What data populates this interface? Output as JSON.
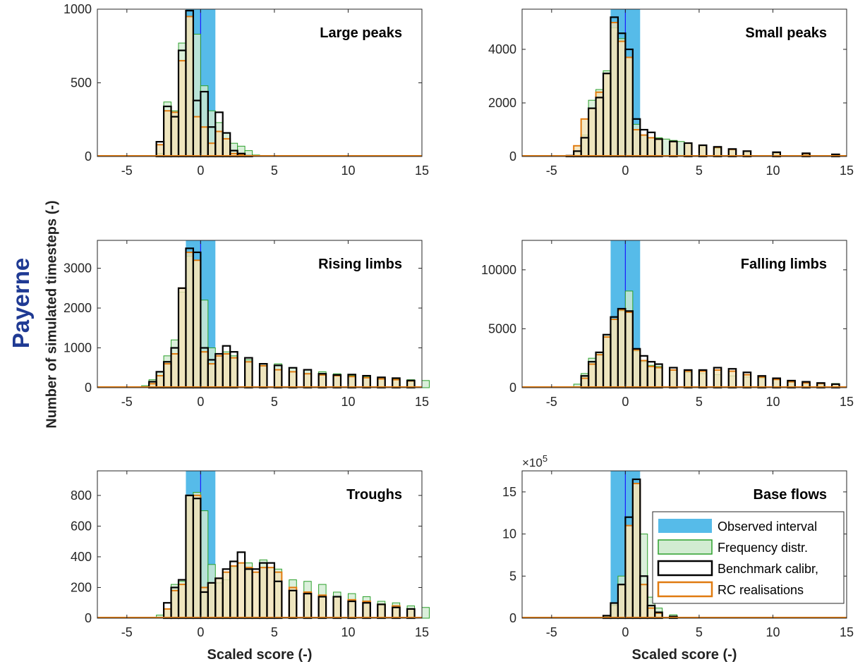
{
  "figure": {
    "site_label": "Payerne",
    "y_axis_label": "Number of simulated timesteps (-)",
    "x_axis_label": "Scaled score (-)"
  },
  "colors": {
    "observed_interval": "#56bbe9",
    "observed_line": "#1a1aff",
    "frequency_fill": "#d2ecd2",
    "frequency_edge": "#2ca02c",
    "benchmark": "#000000",
    "rc_fill": "#f2e2b6",
    "rc_edge": "#e07b10"
  },
  "legend": {
    "observed": "Observed interval",
    "frequency": "Frequency distr.",
    "benchmark": "Benchmark calibr,",
    "rc": "RC realisations"
  },
  "chart_data": [
    {
      "type": "bar",
      "title": "Large peaks",
      "xlim": [
        -7,
        15
      ],
      "ylim": [
        0,
        1000
      ],
      "xticks": [
        -5,
        0,
        5,
        10,
        15
      ],
      "yticks": [
        0,
        500,
        1000
      ],
      "observed_interval": [
        -1,
        1
      ],
      "observed_value": 0,
      "bin_width": 0.5,
      "series": [
        {
          "name": "Frequency distr.",
          "x": [
            -3,
            -2.5,
            -2,
            -1.5,
            -1,
            -0.5,
            0,
            0.5,
            1,
            1.5,
            2,
            2.5,
            3,
            3.5
          ],
          "values": [
            20,
            370,
            310,
            770,
            950,
            830,
            480,
            310,
            230,
            160,
            90,
            70,
            40,
            10
          ]
        },
        {
          "name": "Benchmark calibr,",
          "x": [
            -3,
            -2.5,
            -2,
            -1.5,
            -1,
            -0.5,
            0,
            0.5,
            1,
            1.5,
            2,
            2.5,
            3
          ],
          "values": [
            100,
            340,
            270,
            720,
            990,
            380,
            440,
            200,
            300,
            160,
            40,
            20,
            5
          ]
        },
        {
          "name": "RC realisations",
          "x": [
            -3,
            -2.5,
            -2,
            -1.5,
            -1,
            -0.5,
            0,
            0.5,
            1,
            1.5,
            2,
            2.5
          ],
          "values": [
            80,
            310,
            300,
            650,
            950,
            270,
            200,
            90,
            170,
            120,
            20,
            10
          ]
        }
      ]
    },
    {
      "type": "bar",
      "title": "Small peaks",
      "xlim": [
        -7,
        15
      ],
      "ylim": [
        0,
        5500
      ],
      "xticks": [
        -5,
        0,
        5,
        10,
        15
      ],
      "yticks": [
        0,
        2000,
        4000
      ],
      "observed_interval": [
        -1,
        1
      ],
      "observed_value": 0,
      "bin_width": 0.5,
      "series": [
        {
          "name": "Frequency distr.",
          "x": [
            -4,
            -3.5,
            -3,
            -2.5,
            -2,
            -1.5,
            -1,
            -0.5,
            0,
            0.5,
            1,
            1.5,
            2,
            2.5,
            3,
            3.5,
            4,
            5,
            6,
            7,
            8,
            10,
            12,
            14
          ],
          "values": [
            20,
            200,
            800,
            2100,
            2500,
            3200,
            4800,
            4400,
            3700,
            1200,
            800,
            700,
            700,
            650,
            600,
            560,
            500,
            400,
            300,
            250,
            200,
            120,
            80,
            60
          ]
        },
        {
          "name": "Benchmark calibr,",
          "x": [
            -4,
            -3.5,
            -3,
            -2.5,
            -2,
            -1.5,
            -1,
            -0.5,
            0,
            0.5,
            1,
            1.5,
            2,
            3,
            4,
            5,
            6,
            7,
            8,
            10,
            12,
            14
          ],
          "values": [
            30,
            200,
            700,
            1800,
            2200,
            3100,
            5200,
            4600,
            4000,
            1400,
            1000,
            900,
            650,
            560,
            500,
            420,
            360,
            280,
            200,
            160,
            120,
            80
          ]
        },
        {
          "name": "RC realisations",
          "x": [
            -4,
            -3.5,
            -3,
            -2.5,
            -2,
            -1.5,
            -1,
            -0.5,
            0,
            0.5,
            1,
            1.5,
            2,
            3,
            4,
            5,
            6,
            7,
            8,
            10,
            12,
            14
          ],
          "values": [
            30,
            400,
            1400,
            1800,
            2400,
            3100,
            5000,
            4300,
            3700,
            1000,
            800,
            700,
            650,
            560,
            500,
            420,
            340,
            260,
            200,
            150,
            100,
            70
          ]
        }
      ]
    },
    {
      "type": "bar",
      "title": "Rising limbs",
      "xlim": [
        -7,
        15
      ],
      "ylim": [
        0,
        3700
      ],
      "xticks": [
        -5,
        0,
        5,
        10,
        15
      ],
      "yticks": [
        0,
        1000,
        2000,
        3000
      ],
      "observed_interval": [
        -1,
        1
      ],
      "observed_value": 0,
      "bin_width": 0.5,
      "series": [
        {
          "name": "Frequency distr.",
          "x": [
            -4,
            -3.5,
            -3,
            -2.5,
            -2,
            -1.5,
            -1,
            -0.5,
            0,
            0.5,
            1,
            1.5,
            2,
            3,
            4,
            5,
            6,
            7,
            8,
            9,
            10,
            11,
            12,
            13,
            14,
            15
          ],
          "values": [
            50,
            200,
            400,
            800,
            1200,
            2400,
            3300,
            3200,
            2200,
            1000,
            800,
            900,
            800,
            700,
            600,
            600,
            500,
            450,
            400,
            350,
            300,
            280,
            250,
            220,
            200,
            180
          ]
        },
        {
          "name": "Benchmark calibr,",
          "x": [
            -3.5,
            -3,
            -2.5,
            -2,
            -1.5,
            -1,
            -0.5,
            0,
            0.5,
            1,
            1.5,
            2,
            3,
            4,
            5,
            6,
            7,
            8,
            9,
            10,
            11,
            12,
            13,
            14
          ],
          "values": [
            150,
            400,
            650,
            1000,
            2500,
            3500,
            3400,
            1000,
            700,
            850,
            1050,
            900,
            750,
            600,
            560,
            500,
            450,
            350,
            320,
            330,
            300,
            260,
            240,
            180
          ]
        },
        {
          "name": "RC realisations",
          "x": [
            -3.5,
            -3,
            -2.5,
            -2,
            -1.5,
            -1,
            -0.5,
            0,
            0.5,
            1,
            1.5,
            2,
            3,
            4,
            5,
            6,
            7,
            8,
            9,
            10,
            11,
            12,
            13,
            14
          ],
          "values": [
            100,
            300,
            600,
            850,
            2500,
            3400,
            3200,
            900,
            600,
            800,
            850,
            750,
            650,
            550,
            450,
            400,
            350,
            320,
            300,
            280,
            250,
            220,
            200,
            170
          ]
        }
      ]
    },
    {
      "type": "bar",
      "title": "Falling limbs",
      "xlim": [
        -7,
        15
      ],
      "ylim": [
        0,
        12500
      ],
      "xticks": [
        -5,
        0,
        5,
        10,
        15
      ],
      "yticks": [
        0,
        5000,
        10000
      ],
      "observed_interval": [
        -1,
        1
      ],
      "observed_value": 0,
      "bin_width": 0.5,
      "series": [
        {
          "name": "Frequency distr.",
          "x": [
            -3.5,
            -3,
            -2.5,
            -2,
            -1.5,
            -1,
            -0.5,
            0,
            0.5,
            1,
            1.5,
            2,
            3,
            4,
            5,
            6,
            7,
            8,
            9,
            10,
            11,
            12,
            13,
            14
          ],
          "values": [
            300,
            1200,
            2500,
            3000,
            4500,
            5800,
            6500,
            8200,
            3100,
            2200,
            1900,
            1800,
            1500,
            1300,
            1200,
            1100,
            1000,
            900,
            800,
            700,
            600,
            500,
            400,
            350
          ]
        },
        {
          "name": "Benchmark calibr,",
          "x": [
            -3,
            -2.5,
            -2,
            -1.5,
            -1,
            -0.5,
            0,
            0.5,
            1,
            1.5,
            2,
            3,
            4,
            5,
            6,
            7,
            8,
            9,
            10,
            11,
            12,
            13,
            14
          ],
          "values": [
            1000,
            2200,
            3000,
            4500,
            6000,
            6700,
            6500,
            3300,
            2700,
            2200,
            2000,
            1700,
            1500,
            1500,
            1700,
            1600,
            1300,
            1000,
            800,
            600,
            500,
            400,
            300
          ]
        },
        {
          "name": "RC realisations",
          "x": [
            -3,
            -2.5,
            -2,
            -1.5,
            -1,
            -0.5,
            0,
            0.5,
            1,
            1.5,
            2,
            3,
            4,
            5,
            6,
            7,
            8,
            9,
            10,
            11,
            12,
            13,
            14
          ],
          "values": [
            800,
            2000,
            2800,
            4300,
            5800,
            6600,
            6400,
            3200,
            2300,
            1800,
            1700,
            1500,
            1400,
            1400,
            1500,
            1400,
            1100,
            900,
            700,
            500,
            400,
            350,
            300
          ]
        }
      ]
    },
    {
      "type": "bar",
      "title": "Troughs",
      "xlim": [
        -7,
        15
      ],
      "ylim": [
        0,
        960
      ],
      "xticks": [
        -5,
        0,
        5,
        10,
        15
      ],
      "yticks": [
        0,
        200,
        400,
        600,
        800
      ],
      "observed_interval": [
        -1,
        1
      ],
      "observed_value": 0,
      "bin_width": 0.5,
      "series": [
        {
          "name": "Frequency distr.",
          "x": [
            -3,
            -2.5,
            -2,
            -1.5,
            -1,
            -0.5,
            0,
            0.5,
            1,
            1.5,
            2,
            3,
            4,
            5,
            6,
            7,
            8,
            9,
            10,
            11,
            12,
            13,
            14,
            15
          ],
          "values": [
            20,
            60,
            220,
            240,
            800,
            820,
            700,
            350,
            230,
            250,
            330,
            360,
            380,
            320,
            250,
            240,
            220,
            170,
            160,
            140,
            110,
            100,
            80,
            70
          ]
        },
        {
          "name": "Benchmark calibr,",
          "x": [
            -2.5,
            -2,
            -1.5,
            -1,
            -0.5,
            0,
            0.5,
            1,
            1.5,
            2,
            2.5,
            3,
            3.5,
            4,
            4.5,
            5,
            6,
            7,
            8,
            9,
            10,
            11,
            12,
            13,
            14
          ],
          "values": [
            100,
            200,
            250,
            800,
            780,
            170,
            230,
            260,
            320,
            370,
            430,
            320,
            320,
            360,
            360,
            240,
            180,
            160,
            140,
            140,
            110,
            100,
            90,
            70,
            60
          ]
        },
        {
          "name": "RC realisations",
          "x": [
            -2.5,
            -2,
            -1.5,
            -1,
            -0.5,
            0,
            0.5,
            1,
            1.5,
            2,
            2.5,
            3,
            3.5,
            4,
            4.5,
            5,
            6,
            7,
            8,
            9,
            10,
            11,
            12,
            13,
            14
          ],
          "values": [
            60,
            180,
            220,
            800,
            800,
            200,
            230,
            260,
            300,
            340,
            360,
            330,
            300,
            330,
            330,
            300,
            200,
            170,
            150,
            140,
            120,
            110,
            90,
            80,
            60
          ]
        }
      ]
    },
    {
      "type": "bar",
      "title": "Base flows",
      "xlim": [
        -7,
        15
      ],
      "ylim": [
        0,
        17.5
      ],
      "xticks": [
        -5,
        0,
        5,
        10,
        15
      ],
      "yticks": [
        0,
        5,
        10,
        15
      ],
      "y_multiplier": "×10^5",
      "observed_interval": [
        -1,
        1
      ],
      "observed_value": 0,
      "bin_width": 0.5,
      "series": [
        {
          "name": "Frequency distr.",
          "x": [
            -1.5,
            -1,
            -0.5,
            0,
            0.5,
            1,
            1.5,
            2,
            3,
            4
          ],
          "values": [
            0.2,
            1.5,
            5,
            11,
            16,
            10,
            2.5,
            1.2,
            0.4,
            0.1
          ]
        },
        {
          "name": "Benchmark calibr,",
          "x": [
            -1.5,
            -1,
            -0.5,
            0,
            0.5,
            1,
            1.5,
            2,
            3
          ],
          "values": [
            0.3,
            1.8,
            4,
            12,
            16.5,
            5,
            1.5,
            0.7,
            0.2
          ]
        },
        {
          "name": "RC realisations",
          "x": [
            -1.5,
            -1,
            -0.5,
            0,
            0.5,
            1,
            1.5,
            2,
            3
          ],
          "values": [
            0.3,
            1.8,
            4,
            11,
            16,
            4,
            1.2,
            0.6,
            0.2
          ]
        }
      ],
      "legend_position": "lower-right"
    }
  ]
}
